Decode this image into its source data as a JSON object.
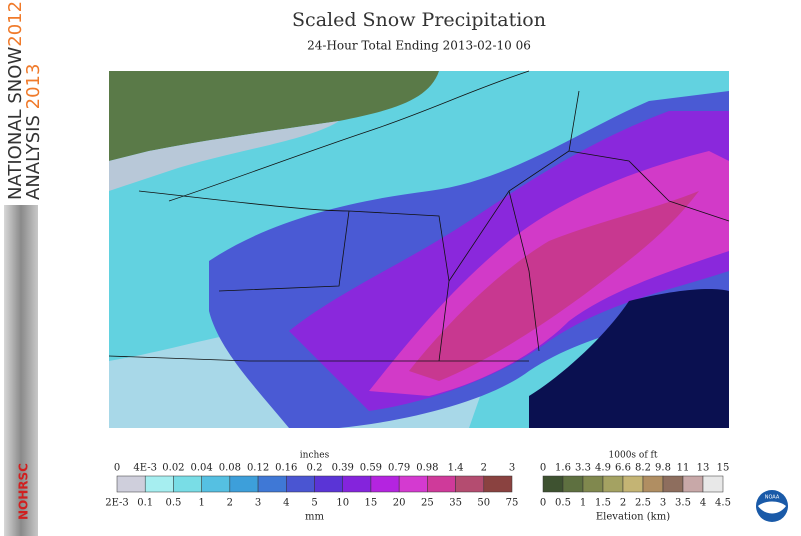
{
  "header": {
    "title": "Scaled Snow Precipitation",
    "subtitle": "24-Hour Total Ending 2013-02-10 06"
  },
  "sidebar": {
    "line1": "NATIONAL SNOW",
    "year1": "2012",
    "line2": "ANALYSIS",
    "year2": "2013",
    "badge": "NOHRSC"
  },
  "precip_legend": {
    "top_unit": "inches",
    "top_labels": [
      "0",
      "4E-3",
      "0.02",
      "0.04",
      "0.08",
      "0.12",
      "0.16",
      "0.2",
      "0.39",
      "0.59",
      "0.79",
      "0.98",
      "1.4",
      "2",
      "3"
    ],
    "bottom_labels": [
      "2E-3",
      "0.1",
      "0.5",
      "1",
      "2",
      "3",
      "4",
      "5",
      "10",
      "15",
      "20",
      "25",
      "35",
      "50",
      "75"
    ],
    "bottom_unit": "mm",
    "colors": [
      "#cfcfdc",
      "#a6eef0",
      "#79dde6",
      "#55c0e2",
      "#3d9fda",
      "#3f78d6",
      "#4a55d2",
      "#5a34d6",
      "#8424dc",
      "#b424e0",
      "#d43ad0",
      "#cf3a9a",
      "#b44c70",
      "#8a4240"
    ]
  },
  "elevation_legend": {
    "top_unit": "1000s of ft",
    "top_labels": [
      "0",
      "1.6",
      "3.3",
      "4.9",
      "6.6",
      "8.2",
      "9.8",
      "11",
      "13",
      "15"
    ],
    "bottom_labels": [
      "0",
      "0.5",
      "1",
      "1.5",
      "2",
      "2.5",
      "3",
      "3.5",
      "4",
      "4.5"
    ],
    "caption": "Elevation (km)",
    "colors": [
      "#3e5230",
      "#5e7040",
      "#80884e",
      "#a4a262",
      "#c4b474",
      "#b08e62",
      "#8e6e5e",
      "#c8a8a8",
      "#e8e8e8"
    ]
  },
  "logo": "NOAA"
}
